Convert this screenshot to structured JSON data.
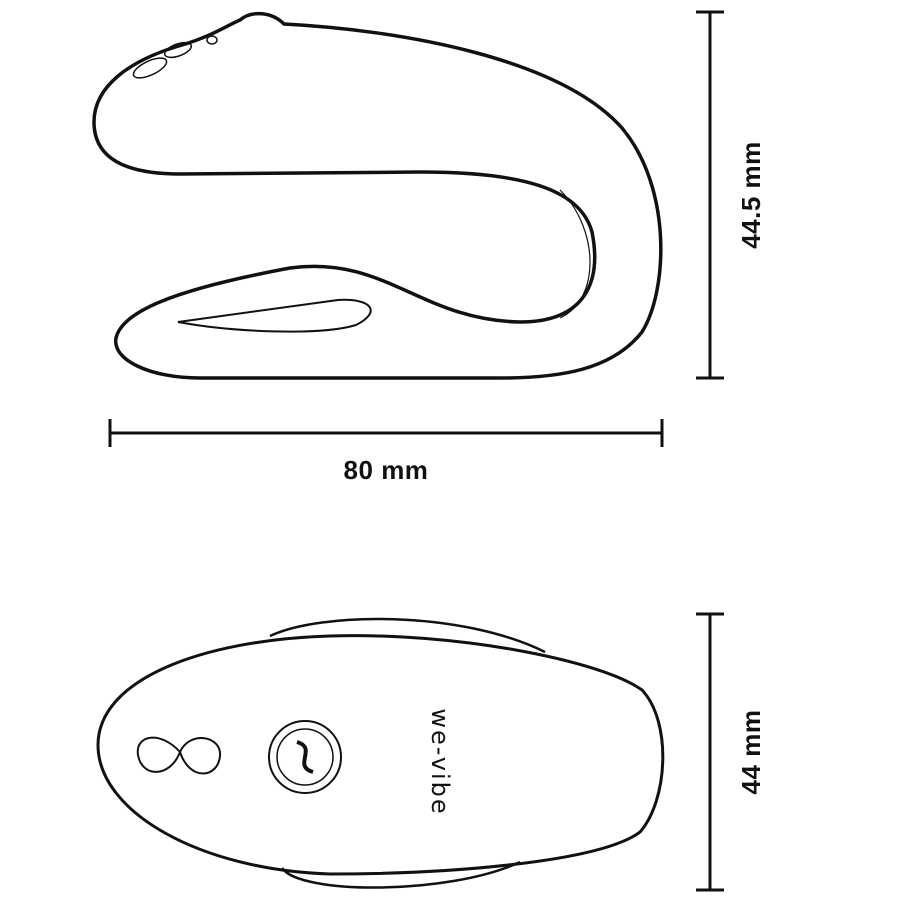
{
  "side_view": {
    "width_label": "80 mm",
    "height_label": "44.5 mm"
  },
  "top_view": {
    "height_label": "44 mm",
    "logo_text": "we-vibe"
  },
  "colors": {
    "stroke": "#111111",
    "background": "#ffffff"
  }
}
